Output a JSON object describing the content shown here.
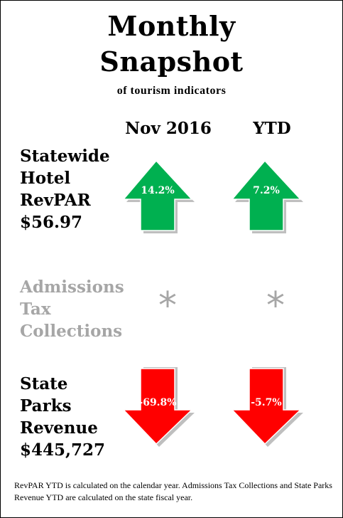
{
  "title": {
    "line1": "Monthly",
    "line2": "Snapshot",
    "subtitle": "of tourism indicators"
  },
  "columns": [
    "Nov 2016",
    "YTD"
  ],
  "rows": [
    {
      "label_lines": [
        "Statewide",
        "Hotel",
        "RevPAR",
        "$56.97"
      ],
      "indicators": [
        {
          "direction": "up",
          "value": "14.2%",
          "color": "#00b050"
        },
        {
          "direction": "up",
          "value": "7.2%",
          "color": "#00b050"
        }
      ]
    },
    {
      "label_lines": [
        "Admissions",
        "Tax",
        "Collections"
      ],
      "label_color": "#a6a6a6",
      "indicators": [
        {
          "symbol": "*",
          "color": "#a6a6a6"
        },
        {
          "symbol": "*",
          "color": "#a6a6a6"
        }
      ]
    },
    {
      "label_lines": [
        "State",
        "Parks",
        "Revenue",
        "$445,727"
      ],
      "indicators": [
        {
          "direction": "down",
          "value": "-69.8%",
          "color": "#ff0000"
        },
        {
          "direction": "down",
          "value": "-5.7%",
          "color": "#ff0000"
        }
      ]
    }
  ],
  "footnote": "RevPAR YTD is calculated on the calendar year. Admissions Tax Collections and State Parks Revenue YTD are calculated on the state fiscal year."
}
